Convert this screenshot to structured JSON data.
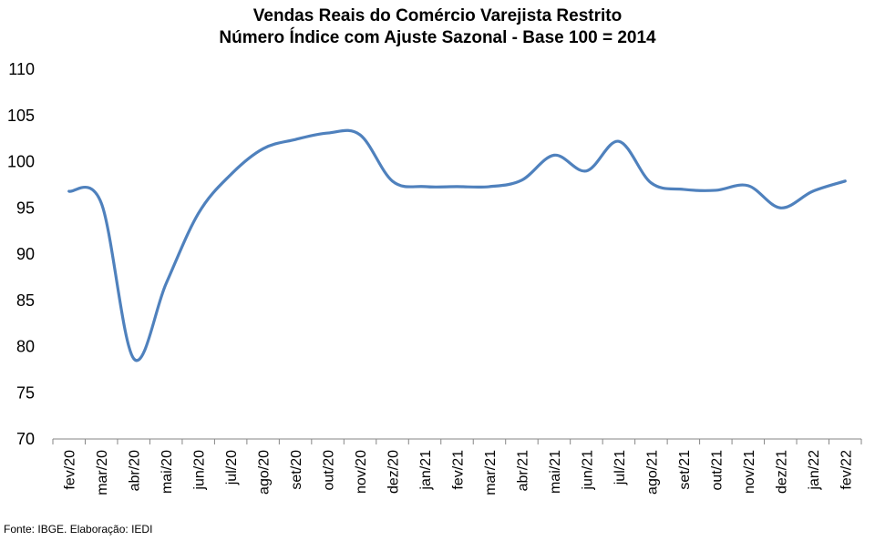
{
  "chart_data": {
    "type": "line",
    "title": "Vendas Reais do Comércio Varejista Restrito",
    "subtitle": "Número Índice com Ajuste Sazonal - Base 100 = 2014",
    "xlabel": "",
    "ylabel": "",
    "ylim": [
      70,
      110
    ],
    "yticks": [
      70,
      75,
      80,
      85,
      90,
      95,
      100,
      105,
      110
    ],
    "grid": false,
    "categories": [
      "fev/20",
      "mar/20",
      "abr/20",
      "mai/20",
      "jun/20",
      "jul/20",
      "ago/20",
      "set/20",
      "out/20",
      "nov/20",
      "dez/20",
      "jan/21",
      "fev/21",
      "mar/21",
      "abr/21",
      "mai/21",
      "jun/21",
      "jul/21",
      "ago/21",
      "set/21",
      "out/21",
      "nov/21",
      "dez/21",
      "jan/22",
      "fev/22"
    ],
    "series": [
      {
        "color": "#4f81bd",
        "values": [
          96.8,
          95.5,
          78.7,
          86.8,
          94.4,
          98.6,
          101.4,
          102.4,
          103.1,
          102.9,
          97.9,
          97.3,
          97.3,
          97.3,
          98.0,
          100.7,
          99.0,
          102.2,
          97.7,
          97.0,
          96.9,
          97.4,
          95.0,
          96.8,
          97.9
        ]
      }
    ]
  },
  "source": "Fonte: IBGE. Elaboração: IEDI"
}
